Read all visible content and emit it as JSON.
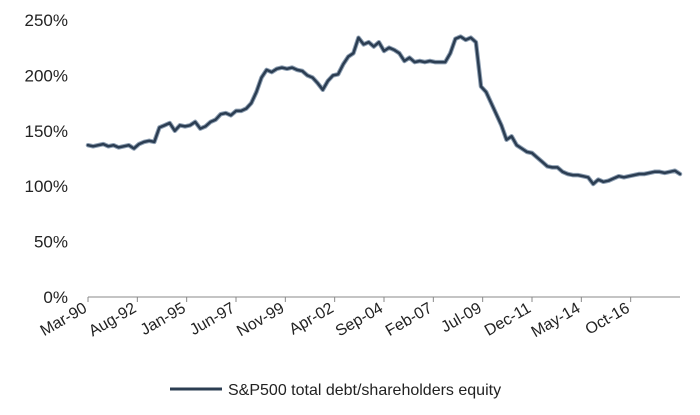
{
  "chart_data": {
    "type": "line",
    "title": "",
    "xlabel": "",
    "ylabel": "",
    "ylim": [
      0,
      250
    ],
    "y_tick_values": [
      0,
      50,
      100,
      150,
      200,
      250
    ],
    "y_tick_labels": [
      "0%",
      "50%",
      "100%",
      "150%",
      "200%",
      "250%"
    ],
    "x_range": [
      "1990-03",
      "2019-03"
    ],
    "x_tick_labels": [
      "Mar-90",
      "Aug-92",
      "Jan-95",
      "Jun-97",
      "Nov-99",
      "Apr-02",
      "Sep-04",
      "Feb-07",
      "Jul-09",
      "Dec-11",
      "May-14",
      "Oct-16"
    ],
    "x_tick_dates": [
      "1990-03",
      "1992-08",
      "1995-01",
      "1997-06",
      "1999-11",
      "2002-04",
      "2004-09",
      "2007-02",
      "2009-07",
      "2011-12",
      "2014-05",
      "2016-10"
    ],
    "grid": false,
    "legend_position": "bottom",
    "line_color": "#2b3d52",
    "series": [
      {
        "name": "S&P500 total debt/shareholders equity",
        "points": [
          [
            "1990-03",
            137
          ],
          [
            "1990-06",
            136
          ],
          [
            "1990-09",
            137
          ],
          [
            "1990-12",
            138
          ],
          [
            "1991-03",
            136
          ],
          [
            "1991-06",
            137
          ],
          [
            "1991-09",
            135
          ],
          [
            "1991-12",
            136
          ],
          [
            "1992-03",
            137
          ],
          [
            "1992-06",
            134
          ],
          [
            "1992-09",
            138
          ],
          [
            "1992-12",
            140
          ],
          [
            "1993-03",
            141
          ],
          [
            "1993-06",
            140
          ],
          [
            "1993-09",
            153
          ],
          [
            "1993-12",
            155
          ],
          [
            "1994-03",
            157
          ],
          [
            "1994-06",
            150
          ],
          [
            "1994-09",
            155
          ],
          [
            "1994-12",
            154
          ],
          [
            "1995-03",
            155
          ],
          [
            "1995-06",
            158
          ],
          [
            "1995-09",
            152
          ],
          [
            "1995-12",
            154
          ],
          [
            "1996-03",
            158
          ],
          [
            "1996-06",
            160
          ],
          [
            "1996-09",
            165
          ],
          [
            "1996-12",
            166
          ],
          [
            "1997-03",
            164
          ],
          [
            "1997-06",
            168
          ],
          [
            "1997-09",
            168
          ],
          [
            "1997-12",
            170
          ],
          [
            "1998-03",
            175
          ],
          [
            "1998-06",
            185
          ],
          [
            "1998-09",
            198
          ],
          [
            "1998-12",
            205
          ],
          [
            "1999-03",
            203
          ],
          [
            "1999-06",
            206
          ],
          [
            "1999-09",
            207
          ],
          [
            "1999-12",
            206
          ],
          [
            "2000-03",
            207
          ],
          [
            "2000-06",
            205
          ],
          [
            "2000-09",
            204
          ],
          [
            "2000-12",
            200
          ],
          [
            "2001-03",
            198
          ],
          [
            "2001-06",
            193
          ],
          [
            "2001-09",
            187
          ],
          [
            "2001-12",
            195
          ],
          [
            "2002-03",
            200
          ],
          [
            "2002-06",
            201
          ],
          [
            "2002-09",
            210
          ],
          [
            "2002-12",
            217
          ],
          [
            "2003-03",
            220
          ],
          [
            "2003-06",
            234
          ],
          [
            "2003-09",
            228
          ],
          [
            "2003-12",
            230
          ],
          [
            "2004-03",
            226
          ],
          [
            "2004-06",
            230
          ],
          [
            "2004-09",
            222
          ],
          [
            "2004-12",
            225
          ],
          [
            "2005-03",
            223
          ],
          [
            "2005-06",
            220
          ],
          [
            "2005-09",
            213
          ],
          [
            "2005-12",
            216
          ],
          [
            "2006-03",
            212
          ],
          [
            "2006-06",
            213
          ],
          [
            "2006-09",
            212
          ],
          [
            "2006-12",
            213
          ],
          [
            "2007-03",
            212
          ],
          [
            "2007-06",
            212
          ],
          [
            "2007-09",
            212
          ],
          [
            "2007-12",
            220
          ],
          [
            "2008-03",
            233
          ],
          [
            "2008-06",
            235
          ],
          [
            "2008-09",
            232
          ],
          [
            "2008-12",
            234
          ],
          [
            "2009-03",
            230
          ],
          [
            "2009-06",
            190
          ],
          [
            "2009-09",
            185
          ],
          [
            "2009-12",
            175
          ],
          [
            "2010-03",
            165
          ],
          [
            "2010-06",
            155
          ],
          [
            "2010-09",
            142
          ],
          [
            "2010-12",
            145
          ],
          [
            "2011-03",
            137
          ],
          [
            "2011-06",
            134
          ],
          [
            "2011-09",
            131
          ],
          [
            "2011-12",
            130
          ],
          [
            "2012-03",
            126
          ],
          [
            "2012-06",
            122
          ],
          [
            "2012-09",
            118
          ],
          [
            "2012-12",
            117
          ],
          [
            "2013-03",
            117
          ],
          [
            "2013-06",
            113
          ],
          [
            "2013-09",
            111
          ],
          [
            "2013-12",
            110
          ],
          [
            "2014-03",
            110
          ],
          [
            "2014-06",
            109
          ],
          [
            "2014-09",
            108
          ],
          [
            "2014-12",
            102
          ],
          [
            "2015-03",
            106
          ],
          [
            "2015-06",
            104
          ],
          [
            "2015-09",
            105
          ],
          [
            "2015-12",
            107
          ],
          [
            "2016-03",
            109
          ],
          [
            "2016-06",
            108
          ],
          [
            "2016-09",
            109
          ],
          [
            "2016-12",
            110
          ],
          [
            "2017-03",
            111
          ],
          [
            "2017-06",
            111
          ],
          [
            "2017-09",
            112
          ],
          [
            "2017-12",
            113
          ],
          [
            "2018-03",
            113
          ],
          [
            "2018-06",
            112
          ],
          [
            "2018-09",
            113
          ],
          [
            "2018-12",
            114
          ],
          [
            "2019-03",
            111
          ]
        ]
      }
    ]
  }
}
